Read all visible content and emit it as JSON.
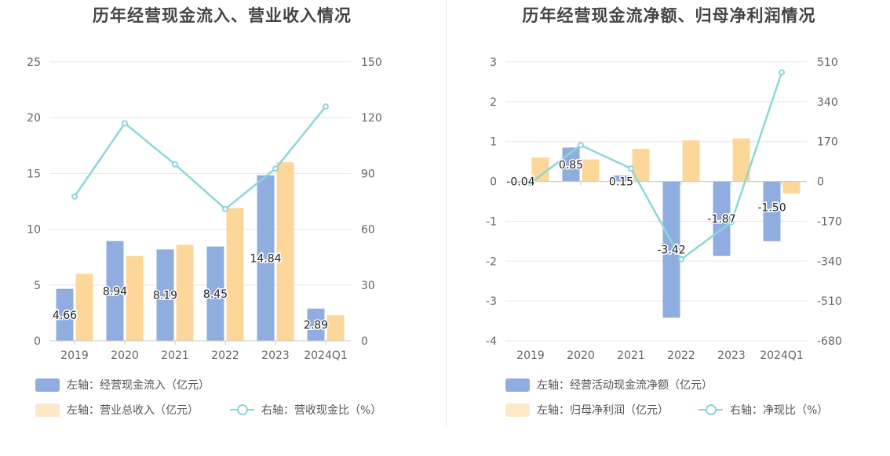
{
  "colors": {
    "bar_primary": "#8fadde",
    "bar_secondary": "#fdd79a",
    "line": "#8dd6d8",
    "grid": "#e3e6f0",
    "axis": "#c8c8c8"
  },
  "chart_data": [
    {
      "type": "bar",
      "title": "历年经营现金流入、营业收入情况",
      "categories": [
        "2019",
        "2020",
        "2021",
        "2022",
        "2023",
        "2024Q1"
      ],
      "left_axis": {
        "ticks": [
          "0",
          "5",
          "10",
          "15",
          "20",
          "25"
        ],
        "ylim": [
          0,
          25
        ]
      },
      "right_axis": {
        "ticks": [
          "0",
          "30",
          "60",
          "90",
          "120",
          "150"
        ],
        "ylim": [
          0,
          150
        ]
      },
      "series": [
        {
          "name": "左轴：经营现金流入（亿元）",
          "axis": "left",
          "kind": "bar",
          "color": "#8fadde",
          "values": [
            4.66,
            8.94,
            8.19,
            8.45,
            14.84,
            2.89
          ],
          "labels": [
            "4.66",
            "8.94",
            "8.19",
            "8.45",
            "14.84",
            "2.89"
          ]
        },
        {
          "name": "左轴：营业总收入（亿元）",
          "axis": "left",
          "kind": "bar",
          "color": "#fdd79a",
          "values": [
            6.0,
            7.6,
            8.6,
            11.9,
            16.0,
            2.3
          ]
        },
        {
          "name": "右轴：营收现金比（%）",
          "axis": "right",
          "kind": "line",
          "color": "#8dd6d8",
          "values": [
            77.6,
            117.0,
            94.9,
            70.9,
            92.6,
            126.0
          ]
        }
      ]
    },
    {
      "type": "bar",
      "title": "历年经营现金流净额、归母净利润情况",
      "categories": [
        "2019",
        "2020",
        "2021",
        "2022",
        "2023",
        "2024Q1"
      ],
      "left_axis": {
        "ticks": [
          "-4",
          "-3",
          "-2",
          "-1",
          "0",
          "1",
          "2",
          "3"
        ],
        "ylim": [
          -4,
          3
        ]
      },
      "right_axis": {
        "ticks": [
          "-680",
          "-510",
          "-340",
          "-170",
          "0",
          "170",
          "340",
          "510"
        ],
        "ylim": [
          -680,
          510
        ]
      },
      "series": [
        {
          "name": "左轴：经营活动现金流净额（亿元）",
          "axis": "left",
          "kind": "bar",
          "color": "#8fadde",
          "values": [
            -0.04,
            0.85,
            0.15,
            -3.42,
            -1.87,
            -1.5
          ],
          "labels": [
            "-0.04",
            "0.85",
            "0.15",
            "-3.42",
            "-1.87",
            "-1.50"
          ]
        },
        {
          "name": "左轴：归母净利润（亿元）",
          "axis": "left",
          "kind": "bar",
          "color": "#fdd79a",
          "values": [
            0.6,
            0.55,
            0.82,
            1.03,
            1.08,
            -0.3
          ]
        },
        {
          "name": "右轴：净现比（%）",
          "axis": "right",
          "kind": "line",
          "color": "#8dd6d8",
          "values": [
            -6.7,
            155.0,
            55.0,
            -332.0,
            -173.0,
            465.0
          ]
        }
      ]
    }
  ]
}
